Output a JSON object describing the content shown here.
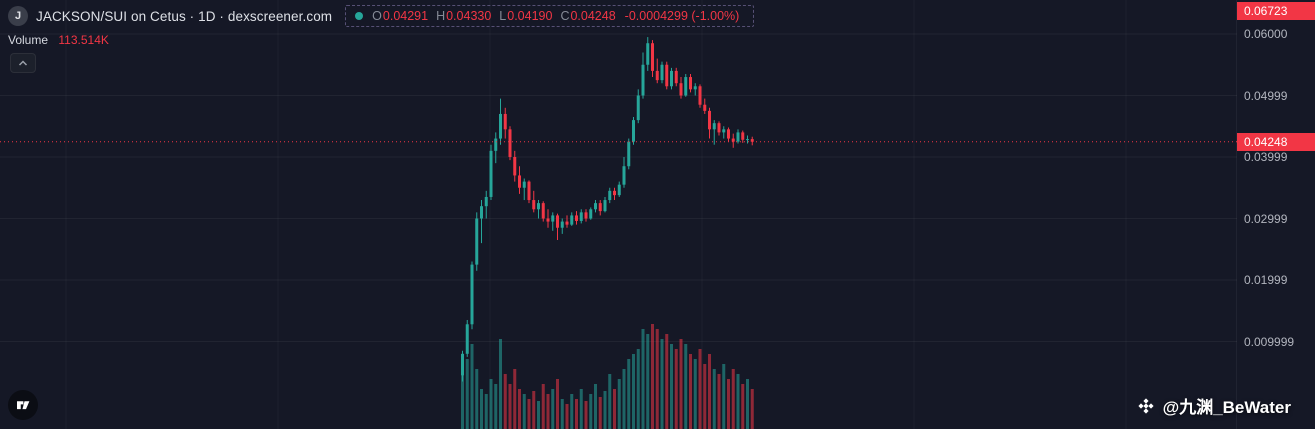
{
  "header": {
    "symbol_logo": "J",
    "title": "JACKSON/SUI on Cetus · 1D · dexscreener.com",
    "ohlc": {
      "o_label": "O",
      "o": "0.04291",
      "h_label": "H",
      "h": "0.04330",
      "l_label": "L",
      "l": "0.04190",
      "c_label": "C",
      "c": "0.04248",
      "change": "-0.0004299 (-1.00%)"
    },
    "volume_label": "Volume",
    "volume_value": "113.514K"
  },
  "price_axis": {
    "top_badge": "0.06723",
    "current_badge": "0.04248",
    "labels": [
      {
        "text": "0.06000",
        "value": 0.06
      },
      {
        "text": "0.04999",
        "value": 0.04999
      },
      {
        "text": "0.03999",
        "value": 0.03999
      },
      {
        "text": "0.02999",
        "value": 0.02999
      },
      {
        "text": "0.01999",
        "value": 0.01999
      },
      {
        "text": "0.009999",
        "value": 0.009999
      }
    ]
  },
  "watermark": {
    "icon": "binance-diamond-logo",
    "text": "@九渊_BeWater"
  },
  "colors": {
    "background": "#151826",
    "up": "#26a69a",
    "down": "#f23645",
    "axis_text": "#b2b5be",
    "badge_bg": "#f23645",
    "grid": "rgba(255,255,255,0.055)"
  },
  "chart_data": {
    "type": "candlestick",
    "title": "JACKSON/SUI on Cetus · 1D · dexscreener.com",
    "symbol": "JACKSON/SUI",
    "venue": "Cetus",
    "interval": "1D",
    "source": "dexscreener.com",
    "legend_ohlc": {
      "open": 0.04291,
      "high": 0.0433,
      "low": 0.0419,
      "close": 0.04248,
      "change": -0.0004299,
      "change_pct": -1.0
    },
    "volume_total_label": "113.514K",
    "current_price": 0.04248,
    "high_marker": 0.06723,
    "grid": true,
    "x_axis_visible": false,
    "y_axis": {
      "side": "right",
      "ticks": [
        0.06,
        0.04999,
        0.03999,
        0.02999,
        0.01999,
        0.009999
      ],
      "tick_labels": [
        "0.06000",
        "0.04999",
        "0.03999",
        "0.02999",
        "0.01999",
        "0.009999"
      ],
      "visible_top": 0.0655,
      "visible_bottom": -0.004
    },
    "candles": [
      [
        0.0045,
        0.0085,
        0.0035,
        0.008
      ],
      [
        0.008,
        0.0135,
        0.0075,
        0.0128
      ],
      [
        0.0128,
        0.023,
        0.012,
        0.0225
      ],
      [
        0.0225,
        0.031,
        0.0215,
        0.03
      ],
      [
        0.03,
        0.033,
        0.026,
        0.032
      ],
      [
        0.032,
        0.0345,
        0.03,
        0.0335
      ],
      [
        0.0335,
        0.042,
        0.033,
        0.041
      ],
      [
        0.041,
        0.044,
        0.039,
        0.043
      ],
      [
        0.043,
        0.0495,
        0.042,
        0.047
      ],
      [
        0.047,
        0.048,
        0.043,
        0.0445
      ],
      [
        0.0445,
        0.045,
        0.0395,
        0.04
      ],
      [
        0.04,
        0.041,
        0.036,
        0.037
      ],
      [
        0.037,
        0.0385,
        0.034,
        0.035
      ],
      [
        0.035,
        0.0365,
        0.033,
        0.036
      ],
      [
        0.036,
        0.0362,
        0.0325,
        0.033
      ],
      [
        0.033,
        0.0345,
        0.031,
        0.0315
      ],
      [
        0.0315,
        0.033,
        0.03,
        0.0325
      ],
      [
        0.0325,
        0.0328,
        0.0295,
        0.03
      ],
      [
        0.03,
        0.0315,
        0.0285,
        0.0295
      ],
      [
        0.0295,
        0.031,
        0.028,
        0.0305
      ],
      [
        0.0305,
        0.0308,
        0.0265,
        0.0285
      ],
      [
        0.0285,
        0.03,
        0.0275,
        0.0295
      ],
      [
        0.0295,
        0.0305,
        0.0285,
        0.029
      ],
      [
        0.029,
        0.031,
        0.0288,
        0.0305
      ],
      [
        0.0305,
        0.0312,
        0.029,
        0.0296
      ],
      [
        0.0296,
        0.0315,
        0.0292,
        0.031
      ],
      [
        0.031,
        0.0315,
        0.0295,
        0.03
      ],
      [
        0.03,
        0.0318,
        0.0298,
        0.0315
      ],
      [
        0.0315,
        0.033,
        0.031,
        0.0325
      ],
      [
        0.0325,
        0.033,
        0.0305,
        0.0312
      ],
      [
        0.0312,
        0.0335,
        0.031,
        0.033
      ],
      [
        0.033,
        0.035,
        0.0325,
        0.0345
      ],
      [
        0.0345,
        0.035,
        0.033,
        0.0338
      ],
      [
        0.0338,
        0.036,
        0.0335,
        0.0355
      ],
      [
        0.0355,
        0.04,
        0.035,
        0.0385
      ],
      [
        0.0385,
        0.043,
        0.038,
        0.0425
      ],
      [
        0.0425,
        0.0465,
        0.042,
        0.046
      ],
      [
        0.046,
        0.051,
        0.0455,
        0.05
      ],
      [
        0.05,
        0.057,
        0.0495,
        0.055
      ],
      [
        0.055,
        0.0595,
        0.054,
        0.0585
      ],
      [
        0.0585,
        0.059,
        0.053,
        0.054
      ],
      [
        0.054,
        0.056,
        0.052,
        0.0525
      ],
      [
        0.0525,
        0.0555,
        0.052,
        0.055
      ],
      [
        0.055,
        0.0555,
        0.051,
        0.0515
      ],
      [
        0.0515,
        0.0545,
        0.051,
        0.054
      ],
      [
        0.054,
        0.0545,
        0.0515,
        0.052
      ],
      [
        0.052,
        0.053,
        0.0495,
        0.05
      ],
      [
        0.05,
        0.0535,
        0.0498,
        0.053
      ],
      [
        0.053,
        0.0535,
        0.0505,
        0.051
      ],
      [
        0.051,
        0.052,
        0.05,
        0.0515
      ],
      [
        0.0515,
        0.0518,
        0.048,
        0.0485
      ],
      [
        0.0485,
        0.0495,
        0.047,
        0.0475
      ],
      [
        0.0475,
        0.048,
        0.043,
        0.0445
      ],
      [
        0.0445,
        0.046,
        0.042,
        0.0455
      ],
      [
        0.0455,
        0.0458,
        0.0435,
        0.044
      ],
      [
        0.044,
        0.045,
        0.043,
        0.0445
      ],
      [
        0.0445,
        0.0448,
        0.0425,
        0.043
      ],
      [
        0.043,
        0.0438,
        0.0415,
        0.0425
      ],
      [
        0.0425,
        0.0445,
        0.0422,
        0.044
      ],
      [
        0.044,
        0.0443,
        0.0423,
        0.0428
      ],
      [
        0.0428,
        0.0435,
        0.0422,
        0.04291
      ],
      [
        0.04291,
        0.0433,
        0.0419,
        0.04248
      ]
    ],
    "volume": [
      55,
      70,
      85,
      60,
      40,
      35,
      50,
      45,
      90,
      55,
      45,
      60,
      40,
      35,
      30,
      38,
      28,
      45,
      35,
      40,
      50,
      30,
      25,
      35,
      30,
      40,
      28,
      35,
      45,
      32,
      38,
      55,
      40,
      50,
      60,
      70,
      75,
      80,
      100,
      95,
      105,
      100,
      90,
      95,
      85,
      80,
      90,
      85,
      75,
      70,
      80,
      65,
      75,
      60,
      55,
      65,
      50,
      60,
      55,
      45,
      50,
      40
    ]
  }
}
